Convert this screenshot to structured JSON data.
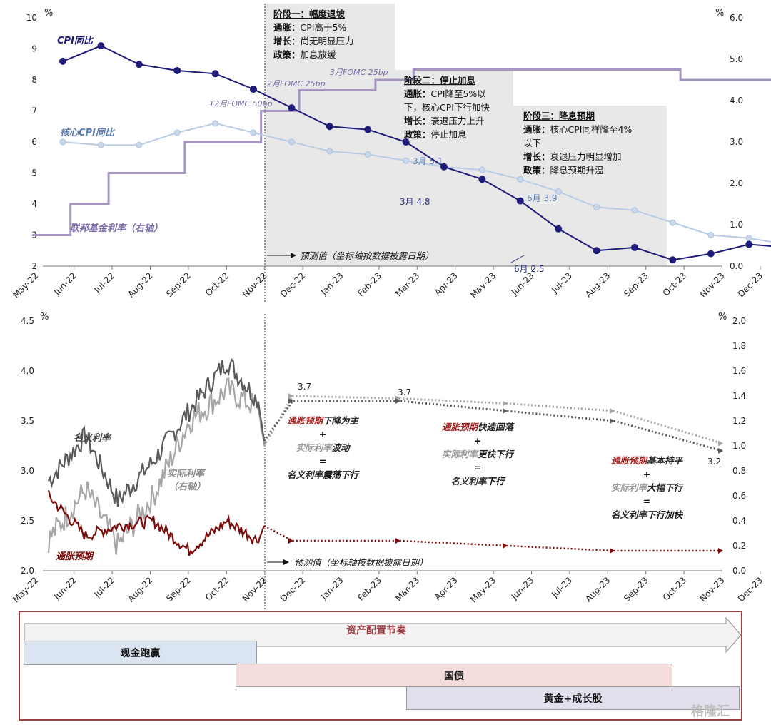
{
  "top": {
    "left_unit": "%",
    "right_unit": "%",
    "months": [
      "May-22",
      "Jun-22",
      "Jul-22",
      "Aug-22",
      "Sep-22",
      "Oct-22",
      "Nov-22",
      "Dec-22",
      "Jan-23",
      "Feb-23",
      "Mar-23",
      "Apr-23",
      "May-23",
      "Jun-23",
      "Jul-23",
      "Aug-23",
      "Sep-23",
      "Oct-23",
      "Nov-23",
      "Dec-23"
    ],
    "left_ticks": [
      "2",
      "3",
      "4",
      "5",
      "6",
      "7",
      "8",
      "9",
      "10"
    ],
    "right_ticks": [
      "0.0",
      "1.0",
      "2.0",
      "3.0",
      "4.0",
      "5.0",
      "6.0"
    ],
    "cpi_label": "CPI同比",
    "core_label": "核心CPI同比",
    "ffr_label": "联邦基金利率（右轴）",
    "fomc_dec": "12月FOMC 50bp",
    "fomc_feb": "2月FOMC 25bp",
    "fomc_mar": "3月FOMC 25bp",
    "forecast_note": "预测值（坐标轴按数据披露日期）",
    "label_mar_cpi": "3月 4.8",
    "label_mar_core": "3月 5.1",
    "label_jun_cpi": "6月 2.5",
    "label_jun_core": "6月 3.9",
    "phase1": {
      "title": "阶段一：幅度退坡",
      "l1a": "通胀：",
      "l1b": "CPI高于5%",
      "l2a": "增长：",
      "l2b": "尚无明显压力",
      "l3a": "政策：",
      "l3b": "加息放缓"
    },
    "phase2": {
      "title": "阶段二：停止加息",
      "l1a": "通胀：",
      "l1b": "CPI降至5%以",
      "l1c": "下，核心CPI下行加快",
      "l2a": "增长：",
      "l2b": "衰退压力上升",
      "l3a": "政策：",
      "l3b": "停止加息"
    },
    "phase3": {
      "title": "阶段三：降息预期",
      "l1a": "通胀：",
      "l1b": "核心CPI同样降至4%",
      "l1c": "以下",
      "l2a": "增长：",
      "l2b": "衰退压力明显增加",
      "l3a": "政策：",
      "l3b": "降息预期升温"
    }
  },
  "bottom": {
    "left_unit": "%",
    "right_unit": "%",
    "months": [
      "May-22",
      "Jun-22",
      "Jul-22",
      "Aug-22",
      "Sep-22",
      "Oct-22",
      "Nov-22",
      "Dec-22",
      "Jan-23",
      "Feb-23",
      "Mar-23",
      "Apr-23",
      "May-23",
      "Jun-23",
      "Jul-23",
      "Aug-23",
      "Sep-23",
      "Oct-23",
      "Nov-23",
      "Dec-23"
    ],
    "left_ticks": [
      "2.0",
      "2.5",
      "3.0",
      "3.5",
      "4.0",
      "4.5"
    ],
    "right_ticks": [
      "0.0",
      "0.2",
      "0.4",
      "0.6",
      "0.8",
      "1.0",
      "1.2",
      "1.4",
      "1.6",
      "1.8",
      "2.0"
    ],
    "nominal_label": "名义利率",
    "real_label_1": "实际利率",
    "real_label_2": "（右轴）",
    "infl_label": "通胀预期",
    "forecast_note": "预测值（坐标轴按数据披露日期）",
    "v_37a": "3.7",
    "v_37b": "3.7",
    "v_32": "3.2",
    "t1": {
      "a1": "通胀预期",
      "a2": "下降为主",
      "p": "+",
      "b1": "实际利率",
      "b2": "波动",
      "e": "=",
      "c1": "名义利率",
      "c2": "震荡下行"
    },
    "t2": {
      "a1": "通胀预期",
      "a2": "快速回落",
      "p": "+",
      "b1": "实际利率",
      "b2": "更快下行",
      "e": "=",
      "c1": "名义利率",
      "c2": "下行"
    },
    "t3": {
      "a1": "通胀预期",
      "a2": "基本持平",
      "p": "+",
      "b1": "实际利率",
      "b2": "大幅下行",
      "e": "=",
      "c1": "名义利率",
      "c2": "下行加快"
    }
  },
  "schedule": {
    "title": "资产配置节奏",
    "cash": "现金跑赢",
    "bonds": "国债",
    "gold": "黄金+成长股"
  },
  "watermark": "格隆汇",
  "colors": {
    "cpi": "#1f1c7a",
    "core": "#a9c2de",
    "ffr": "#a694c2",
    "nominal": "#595959",
    "real": "#a6a6a6",
    "infl": "#7b0a0a",
    "border": "#9b3b42"
  },
  "chart_data": [
    {
      "type": "line",
      "x": [
        "May-22",
        "Jun-22",
        "Jul-22",
        "Aug-22",
        "Sep-22",
        "Oct-22",
        "Nov-22",
        "Dec-22",
        "Jan-23",
        "Feb-23",
        "Mar-23",
        "Apr-23",
        "May-23",
        "Jun-23",
        "Jul-23",
        "Aug-23",
        "Sep-23",
        "Oct-23",
        "Nov-23",
        "Dec-23"
      ],
      "y_left_range": [
        2,
        10
      ],
      "y_right_range": [
        0,
        6
      ],
      "series": [
        {
          "name": "CPI同比",
          "axis": "left",
          "points": [
            [
              "May-22",
              8.6
            ],
            [
              "Jun-22",
              9.1
            ],
            [
              "Jul-22",
              8.5
            ],
            [
              "Aug-22",
              8.3
            ],
            [
              "Sep-22",
              8.2
            ],
            [
              "Oct-22",
              7.7
            ],
            [
              "Nov-22",
              7.1
            ],
            [
              "Dec-22",
              6.5
            ],
            [
              "Jan-23",
              6.4
            ],
            [
              "Feb-23",
              6.0
            ],
            [
              "Mar-23",
              5.2
            ],
            [
              "Apr-23",
              4.8
            ],
            [
              "May-23",
              4.1
            ],
            [
              "Jun-23",
              3.2
            ],
            [
              "Jul-23",
              2.5
            ],
            [
              "Aug-23",
              2.6
            ],
            [
              "Sep-23",
              2.2
            ],
            [
              "Oct-23",
              2.4
            ],
            [
              "Nov-23",
              2.7
            ],
            [
              "Dec-23",
              2.6
            ]
          ]
        },
        {
          "name": "核心CPI同比",
          "axis": "left",
          "points": [
            [
              "May-22",
              6.0
            ],
            [
              "Jun-22",
              5.9
            ],
            [
              "Jul-22",
              5.9
            ],
            [
              "Aug-22",
              6.3
            ],
            [
              "Sep-22",
              6.6
            ],
            [
              "Oct-22",
              6.3
            ],
            [
              "Nov-22",
              6.0
            ],
            [
              "Dec-22",
              5.7
            ],
            [
              "Jan-23",
              5.6
            ],
            [
              "Feb-23",
              5.4
            ],
            [
              "Mar-23",
              5.2
            ],
            [
              "Apr-23",
              5.1
            ],
            [
              "May-23",
              4.8
            ],
            [
              "Jun-23",
              4.4
            ],
            [
              "Jul-23",
              3.9
            ],
            [
              "Aug-23",
              3.8
            ],
            [
              "Sep-23",
              3.4
            ],
            [
              "Oct-23",
              3.0
            ],
            [
              "Nov-23",
              2.9
            ],
            [
              "Dec-23",
              2.7
            ]
          ]
        },
        {
          "name": "联邦基金利率（右轴）",
          "axis": "right",
          "step": true,
          "points": [
            [
              "May-22",
              0.75
            ],
            [
              "Jun-22",
              1.5
            ],
            [
              "Jul-22",
              2.25
            ],
            [
              "Aug-22",
              2.25
            ],
            [
              "Sep-22",
              3.0
            ],
            [
              "Oct-22",
              3.0
            ],
            [
              "Nov-22",
              3.75
            ],
            [
              "Dec-22",
              4.25
            ],
            [
              "Jan-23",
              4.25
            ],
            [
              "Feb-23",
              4.5
            ],
            [
              "Mar-23",
              4.75
            ],
            [
              "Apr-23",
              4.75
            ],
            [
              "May-23",
              4.75
            ],
            [
              "Jun-23",
              4.75
            ],
            [
              "Jul-23",
              4.75
            ],
            [
              "Aug-23",
              4.75
            ],
            [
              "Sep-23",
              4.75
            ],
            [
              "Oct-23",
              4.5
            ],
            [
              "Nov-23",
              4.5
            ],
            [
              "Dec-23",
              4.5
            ]
          ]
        }
      ]
    },
    {
      "type": "line",
      "x": [
        "May-22",
        "Jun-22",
        "Jul-22",
        "Aug-22",
        "Sep-22",
        "Oct-22",
        "Nov-22",
        "Dec-22",
        "Jan-23",
        "Feb-23",
        "Mar-23",
        "Apr-23",
        "May-23",
        "Jun-23",
        "Jul-23",
        "Aug-23",
        "Sep-23",
        "Oct-23",
        "Nov-23",
        "Dec-23"
      ],
      "y_left_range": [
        2.0,
        4.5
      ],
      "y_right_range": [
        0.0,
        2.0
      ],
      "series": [
        {
          "name": "名义利率",
          "axis": "left",
          "points": [
            [
              "May-22",
              2.9
            ],
            [
              "Jun-22",
              3.35
            ],
            [
              "Jul-22",
              2.7
            ],
            [
              "Aug-22",
              3.1
            ],
            [
              "Sep-22",
              3.6
            ],
            [
              "Oct-22",
              4.1
            ],
            [
              "Nov-22",
              3.7
            ],
            [
              "Nov-22",
              3.3
            ],
            [
              "Dec-22",
              3.7
            ],
            [
              "Mar-23",
              3.7
            ],
            [
              "Jun-23",
              3.6
            ],
            [
              "Sep-23",
              3.5
            ],
            [
              "Dec-23",
              3.2
            ]
          ]
        },
        {
          "name": "实际利率",
          "axis": "right",
          "points": [
            [
              "May-22",
              0.25
            ],
            [
              "Jun-22",
              0.65
            ],
            [
              "Jul-22",
              0.2
            ],
            [
              "Aug-22",
              0.6
            ],
            [
              "Sep-22",
              1.2
            ],
            [
              "Oct-22",
              1.45
            ],
            [
              "Nov-22",
              1.3
            ],
            [
              "Nov-22",
              1.0
            ],
            [
              "Dec-22",
              1.4
            ],
            [
              "Mar-23",
              1.38
            ],
            [
              "Jun-23",
              1.34
            ],
            [
              "Sep-23",
              1.28
            ],
            [
              "Dec-23",
              1.02
            ]
          ]
        },
        {
          "name": "通胀预期",
          "axis": "left",
          "points": [
            [
              "May-22",
              2.75
            ],
            [
              "Jun-22",
              2.35
            ],
            [
              "Jul-22",
              2.45
            ],
            [
              "Aug-22",
              2.5
            ],
            [
              "Sep-22",
              2.2
            ],
            [
              "Oct-22",
              2.5
            ],
            [
              "Nov-22",
              2.3
            ],
            [
              "Nov-22",
              2.45
            ],
            [
              "Dec-22",
              2.3
            ],
            [
              "Mar-23",
              2.3
            ],
            [
              "Jun-23",
              2.25
            ],
            [
              "Sep-23",
              2.2
            ],
            [
              "Dec-23",
              2.2
            ]
          ]
        }
      ]
    }
  ]
}
